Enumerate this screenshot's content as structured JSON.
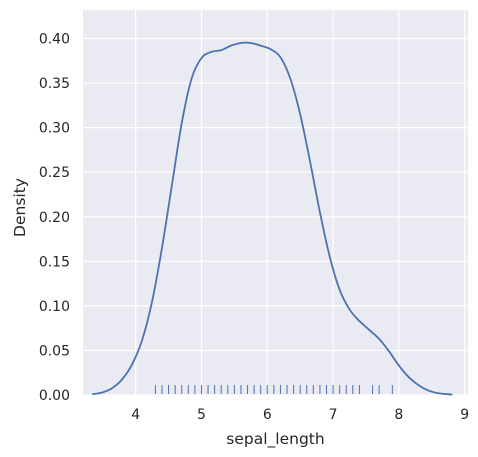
{
  "chart_data": {
    "type": "line",
    "title": "",
    "xlabel": "sepal_length",
    "ylabel": "Density",
    "xlim": [
      3.2,
      9.05
    ],
    "ylim": [
      0,
      0.432
    ],
    "xticks": [
      4,
      5,
      6,
      7,
      8,
      9
    ],
    "yticks": [
      0.0,
      0.05,
      0.1,
      0.15,
      0.2,
      0.25,
      0.3,
      0.35,
      0.4
    ],
    "ytick_labels": [
      "0.00",
      "0.05",
      "0.10",
      "0.15",
      "0.20",
      "0.25",
      "0.30",
      "0.35",
      "0.40"
    ],
    "grid": true,
    "background": "#eaeaf2",
    "grid_color": "#ffffff",
    "line_color": "#4c72b0",
    "series": [
      {
        "kind": "kde",
        "x": [
          3.35,
          3.5,
          3.65,
          3.8,
          3.95,
          4.1,
          4.25,
          4.4,
          4.55,
          4.7,
          4.85,
          5.0,
          5.15,
          5.3,
          5.45,
          5.6,
          5.75,
          5.9,
          6.05,
          6.2,
          6.35,
          6.5,
          6.65,
          6.8,
          6.95,
          7.1,
          7.25,
          7.4,
          7.55,
          7.7,
          7.85,
          8.0,
          8.15,
          8.3,
          8.45,
          8.6,
          8.8
        ],
        "y": [
          0.001,
          0.003,
          0.008,
          0.018,
          0.035,
          0.062,
          0.105,
          0.165,
          0.235,
          0.305,
          0.355,
          0.378,
          0.385,
          0.387,
          0.392,
          0.395,
          0.395,
          0.392,
          0.388,
          0.379,
          0.355,
          0.315,
          0.262,
          0.205,
          0.155,
          0.118,
          0.096,
          0.083,
          0.073,
          0.063,
          0.049,
          0.033,
          0.02,
          0.011,
          0.005,
          0.002,
          0.0005
        ]
      }
    ],
    "rug": [
      4.3,
      4.4,
      4.5,
      4.6,
      4.7,
      4.8,
      4.9,
      5.0,
      5.1,
      5.2,
      5.3,
      5.4,
      5.5,
      5.6,
      5.7,
      5.8,
      5.9,
      6.0,
      6.1,
      6.2,
      6.3,
      6.4,
      6.5,
      6.6,
      6.7,
      6.8,
      6.9,
      7.0,
      7.1,
      7.2,
      7.3,
      7.4,
      7.6,
      7.7,
      7.9
    ]
  }
}
